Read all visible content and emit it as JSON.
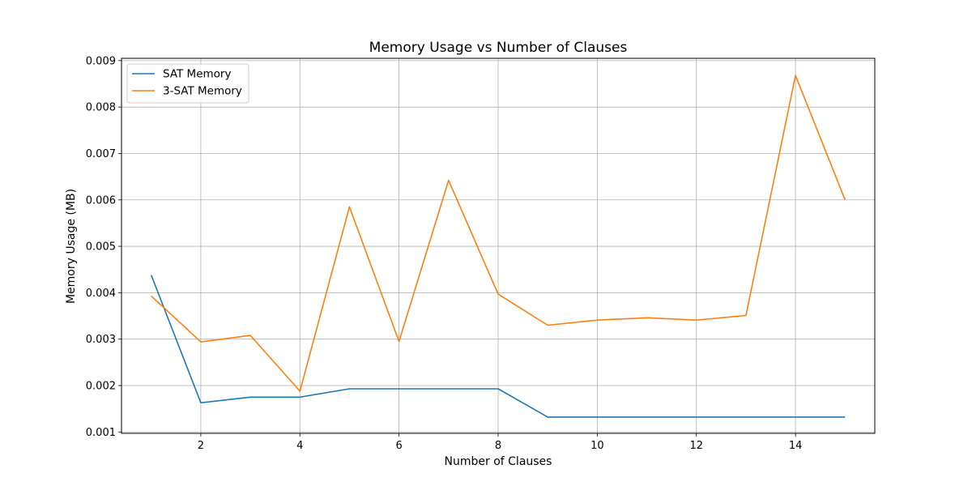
{
  "chart_data": {
    "type": "line",
    "title": "Memory Usage vs Number of Clauses",
    "xlabel": "Number of Clauses",
    "ylabel": "Memory Usage (MB)",
    "xlim": [
      0.4,
      15.6
    ],
    "ylim": [
      0.00097,
      0.00905
    ],
    "xticks": [
      2,
      4,
      6,
      8,
      10,
      12,
      14
    ],
    "yticks": [
      0.001,
      0.002,
      0.003,
      0.004,
      0.005,
      0.006,
      0.007,
      0.008,
      0.009
    ],
    "ytick_labels": [
      "0.001",
      "0.002",
      "0.003",
      "0.004",
      "0.005",
      "0.006",
      "0.007",
      "0.008",
      "0.009"
    ],
    "grid": true,
    "legend_position": "upper-left",
    "x": [
      1,
      2,
      3,
      4,
      5,
      6,
      7,
      8,
      9,
      10,
      11,
      12,
      13,
      14,
      15
    ],
    "series": [
      {
        "name": "SAT Memory",
        "color": "#1f77b4",
        "values": [
          0.00438,
          0.00163,
          0.00175,
          0.00175,
          0.00193,
          0.00193,
          0.00193,
          0.00193,
          0.00132,
          0.00132,
          0.00132,
          0.00132,
          0.00132,
          0.00132,
          0.00132
        ]
      },
      {
        "name": "3-SAT Memory",
        "color": "#ff7f0e",
        "values": [
          0.00393,
          0.00294,
          0.00308,
          0.00188,
          0.00585,
          0.00295,
          0.00642,
          0.00397,
          0.0033,
          0.00341,
          0.00346,
          0.00341,
          0.00351,
          0.00868,
          0.006
        ]
      }
    ]
  }
}
